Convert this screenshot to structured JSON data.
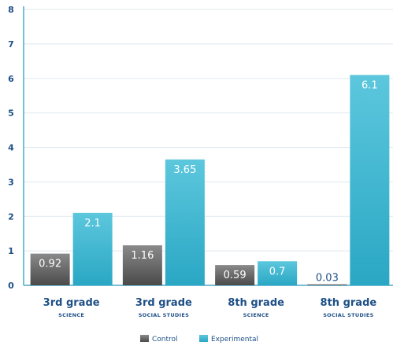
{
  "chart_data": {
    "type": "bar",
    "categories": [
      {
        "main": "3rd grade",
        "sub": "SCIENCE"
      },
      {
        "main": "3rd grade",
        "sub": "SOCIAL STUDIES"
      },
      {
        "main": "8th grade",
        "sub": "SCIENCE"
      },
      {
        "main": "8th grade",
        "sub": "SOCIAL STUDIES"
      }
    ],
    "series": [
      {
        "name": "Control",
        "values": [
          0.92,
          1.16,
          0.59,
          0.03
        ],
        "labels": [
          "0.92",
          "1.16",
          "0.59",
          "0.03"
        ],
        "color": "#6e6e6e"
      },
      {
        "name": "Experimental",
        "values": [
          2.1,
          3.65,
          0.7,
          6.1
        ],
        "labels": [
          "2.1",
          "3.65",
          "0.7",
          "6.1"
        ],
        "color": "#3fb6d2"
      }
    ],
    "yticks": [
      "0",
      "1",
      "2",
      "3",
      "4",
      "5",
      "6",
      "7",
      "8"
    ],
    "ylim": [
      0,
      8
    ],
    "grid": true,
    "legend_position": "bottom-center",
    "title": "",
    "xlabel": "",
    "ylabel": ""
  }
}
